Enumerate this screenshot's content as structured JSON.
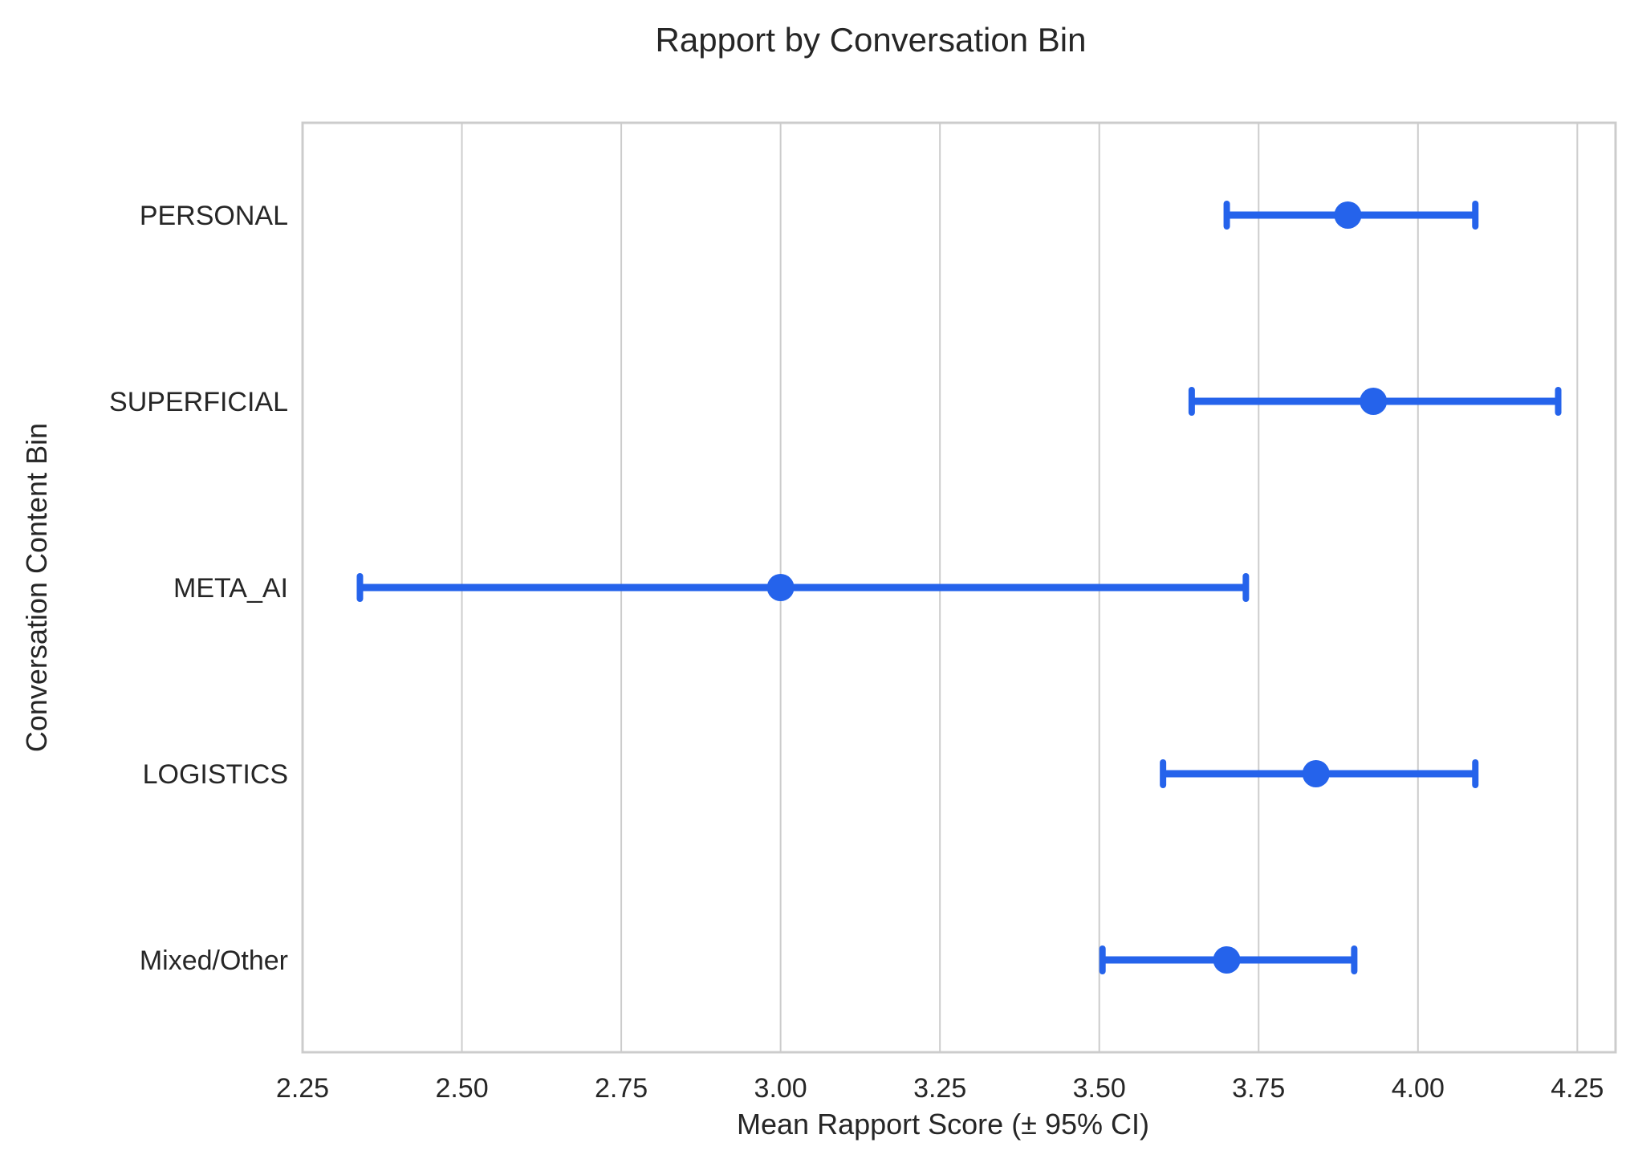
{
  "chart_data": {
    "type": "scatter",
    "subtype": "point-range",
    "orientation": "horizontal",
    "title": "Rapport by Conversation Bin",
    "xlabel": "Mean Rapport Score (± 95% CI)",
    "ylabel": "Conversation Content Bin",
    "xlim": [
      2.25,
      4.31
    ],
    "x_ticks": [
      "2.25",
      "2.50",
      "2.75",
      "3.00",
      "3.25",
      "3.50",
      "3.75",
      "4.00",
      "4.25"
    ],
    "x_tick_values": [
      2.25,
      2.5,
      2.75,
      3.0,
      3.25,
      3.5,
      3.75,
      4.0,
      4.25
    ],
    "categories": [
      "PERSONAL",
      "SUPERFICIAL",
      "META_AI",
      "LOGISTICS",
      "Mixed/Other"
    ],
    "means": [
      3.89,
      3.93,
      3.0,
      3.84,
      3.7
    ],
    "ci_lower": [
      3.7,
      3.645,
      2.34,
      3.6,
      3.505
    ],
    "ci_upper": [
      4.09,
      4.22,
      3.73,
      4.09,
      3.9
    ],
    "grid": "vertical",
    "legend": "none",
    "colors": {
      "series": "#2563eb",
      "grid": "#cccccc",
      "spine": "#cccccc",
      "text": "#262626"
    }
  }
}
